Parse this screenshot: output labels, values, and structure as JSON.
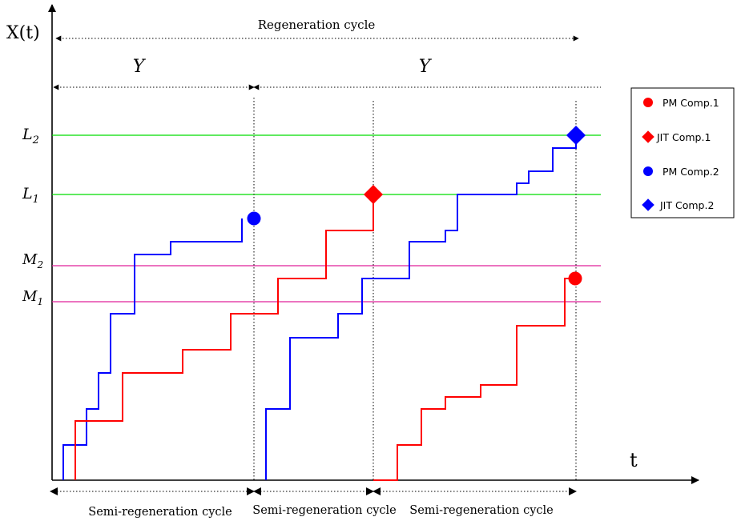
{
  "figure": {
    "y_axis_label": "X(t)",
    "x_axis_label": "t",
    "regeneration_label": "Regeneration cycle",
    "y_span_label": "Y",
    "semi_regeneration_label": "Semi-regeneration cycle",
    "level_labels": {
      "L2": {
        "base": "L",
        "sub": "2"
      },
      "L1": {
        "base": "L",
        "sub": "1"
      },
      "M2": {
        "base": "M",
        "sub": "2"
      },
      "M1": {
        "base": "M",
        "sub": "1"
      }
    },
    "legend": [
      {
        "label": "PM Comp.1",
        "marker": "circle",
        "color": "#ff0000"
      },
      {
        "label": "JIT Comp.1",
        "marker": "diamond",
        "color": "#ff0000"
      },
      {
        "label": "PM Comp.2",
        "marker": "circle",
        "color": "#0000ff"
      },
      {
        "label": "JIT Comp.2",
        "marker": "diamond",
        "color": "#0000ff"
      }
    ],
    "colors": {
      "component_1": "#ff0000",
      "component_2": "#0000ff",
      "failure_threshold": "#00dd00",
      "pm_threshold": "#e0209a",
      "axis": "#000000"
    }
  }
}
